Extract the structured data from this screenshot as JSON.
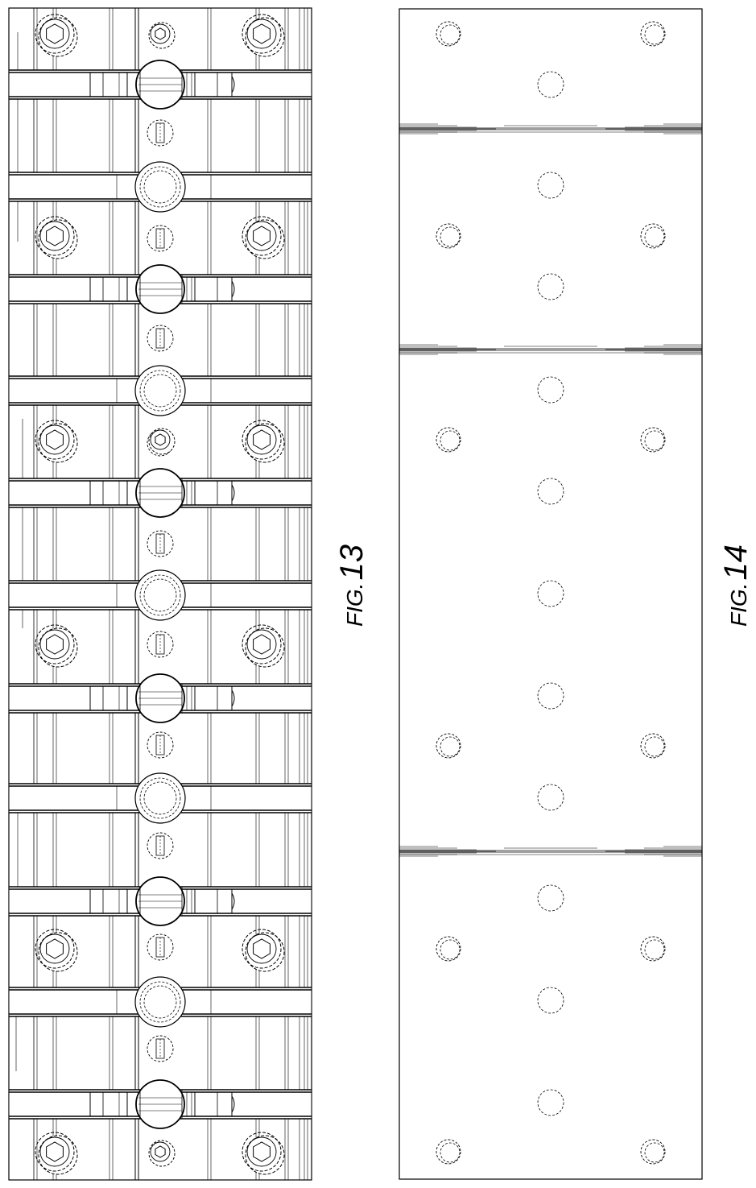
{
  "figures": {
    "fig13": {
      "prefix": "FIG.",
      "number": "13"
    },
    "fig14": {
      "prefix": "FIG.",
      "number": "14"
    }
  },
  "colors": {
    "line": "#000000",
    "background": "#ffffff"
  }
}
